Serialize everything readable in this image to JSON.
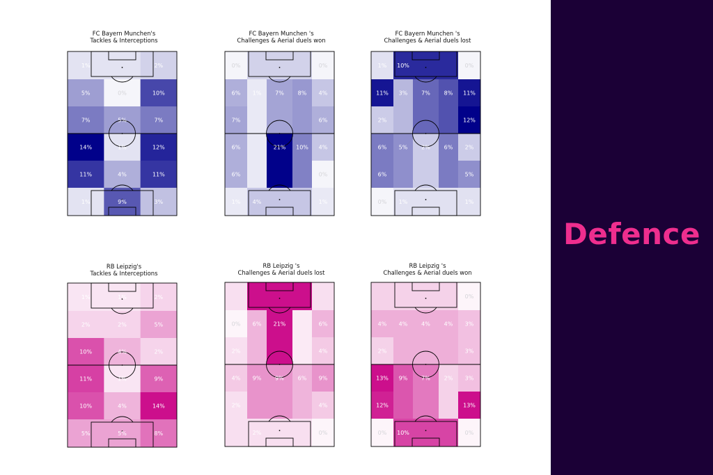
{
  "panel": {
    "title": "Defence",
    "background": "#1b0036",
    "title_color": "#ee2e8e"
  },
  "palettes": {
    "bayern": "#01018a",
    "leipzig": "#cc0f8c"
  },
  "chart_data": [
    {
      "type": "heatmap",
      "team": "bayern",
      "title": [
        "FC Bayern Munchen's",
        "Tackles & Interceptions"
      ],
      "rows": [
        [
          {
            "v": 1,
            "l": "1%"
          },
          {
            "v": 1,
            "l": null
          },
          {
            "v": 2,
            "l": "2%"
          }
        ],
        [
          {
            "v": 5,
            "l": "5%"
          },
          {
            "v": 0,
            "l": "0%"
          },
          {
            "v": 10,
            "l": "10%"
          }
        ],
        [
          {
            "v": 7,
            "l": "7%"
          },
          {
            "v": 5,
            "l": "5%"
          },
          {
            "v": 7,
            "l": "7%"
          }
        ],
        [
          {
            "v": 14,
            "l": "14%"
          },
          {
            "v": 1,
            "l": "1%"
          },
          {
            "v": 12,
            "l": "12%"
          }
        ],
        [
          {
            "v": 11,
            "l": "11%"
          },
          {
            "v": 4,
            "l": "4%"
          },
          {
            "v": 11,
            "l": "11%"
          }
        ],
        [
          {
            "v": 1,
            "l": "1%"
          },
          {
            "v": 9,
            "l": "9%"
          },
          {
            "v": 3,
            "l": "3%"
          }
        ]
      ]
    },
    {
      "type": "heatmap",
      "team": "bayern",
      "title": [
        "FC Bayern Munchen 's",
        "Challenges & Aerial duels won"
      ],
      "rows": [
        [
          {
            "v": 0,
            "l": "0%"
          },
          {
            "v": 3,
            "l": null
          },
          {
            "v": 3,
            "l": null
          },
          {
            "v": 3,
            "l": null
          },
          {
            "v": 0,
            "l": "0%"
          }
        ],
        [
          {
            "v": 6,
            "l": "6%"
          },
          {
            "v": 1,
            "l": "1%"
          },
          {
            "v": 7,
            "l": "7%"
          },
          {
            "v": 8,
            "l": "8%"
          },
          {
            "v": 4,
            "l": "4%"
          }
        ],
        [
          {
            "v": 7,
            "l": "7%"
          },
          {
            "v": 1,
            "l": null
          },
          {
            "v": 7,
            "l": null
          },
          {
            "v": 8,
            "l": null
          },
          {
            "v": 6,
            "l": "6%"
          }
        ],
        [
          {
            "v": 6,
            "l": "6%"
          },
          {
            "v": 1,
            "l": null
          },
          {
            "v": 21,
            "l": "21%"
          },
          {
            "v": 10,
            "l": "10%"
          },
          {
            "v": 4,
            "l": "4%"
          }
        ],
        [
          {
            "v": 6,
            "l": "6%"
          },
          {
            "v": 1,
            "l": null
          },
          {
            "v": 21,
            "l": null
          },
          {
            "v": 10,
            "l": null
          },
          {
            "v": 0,
            "l": "0%"
          }
        ],
        [
          {
            "v": 1,
            "l": "1%"
          },
          {
            "v": 4,
            "l": "4%"
          },
          {
            "v": 4,
            "l": null
          },
          {
            "v": 4,
            "l": null
          },
          {
            "v": 1,
            "l": "1%"
          }
        ]
      ]
    },
    {
      "type": "heatmap",
      "team": "bayern",
      "title": [
        "FC Bayern Munchen 's",
        "Challenges & Aerial duels lost"
      ],
      "rows": [
        [
          {
            "v": 1,
            "l": "1%"
          },
          {
            "v": 10,
            "l": "10%"
          },
          {
            "v": 10,
            "l": null
          },
          {
            "v": 10,
            "l": null
          },
          {
            "v": 0,
            "l": "0%"
          }
        ],
        [
          {
            "v": 11,
            "l": "11%"
          },
          {
            "v": 3,
            "l": "3%"
          },
          {
            "v": 7,
            "l": "7%"
          },
          {
            "v": 8,
            "l": "8%"
          },
          {
            "v": 11,
            "l": "11%"
          }
        ],
        [
          {
            "v": 2,
            "l": "2%"
          },
          {
            "v": 3,
            "l": null
          },
          {
            "v": 7,
            "l": null
          },
          {
            "v": 8,
            "l": null
          },
          {
            "v": 12,
            "l": "12%"
          }
        ],
        [
          {
            "v": 6,
            "l": "6%"
          },
          {
            "v": 5,
            "l": "5%"
          },
          {
            "v": 2,
            "l": "2%"
          },
          {
            "v": 6,
            "l": "6%"
          },
          {
            "v": 2,
            "l": "2%"
          }
        ],
        [
          {
            "v": 6,
            "l": "6%"
          },
          {
            "v": 5,
            "l": null
          },
          {
            "v": 2,
            "l": null
          },
          {
            "v": 6,
            "l": null
          },
          {
            "v": 5,
            "l": "5%"
          }
        ],
        [
          {
            "v": 0,
            "l": "0%"
          },
          {
            "v": 1,
            "l": "1%"
          },
          {
            "v": 1,
            "l": null
          },
          {
            "v": 1,
            "l": null
          },
          {
            "v": 1,
            "l": "1%"
          }
        ]
      ]
    },
    {
      "type": "heatmap",
      "team": "leipzig",
      "title": [
        "RB Leipzig's",
        "Tackles & Interceptions"
      ],
      "rows": [
        [
          {
            "v": 1,
            "l": "1%"
          },
          {
            "v": 1,
            "l": "1%"
          },
          {
            "v": 2,
            "l": "2%"
          }
        ],
        [
          {
            "v": 2,
            "l": "2%"
          },
          {
            "v": 2,
            "l": "2%"
          },
          {
            "v": 5,
            "l": "5%"
          }
        ],
        [
          {
            "v": 10,
            "l": "10%"
          },
          {
            "v": 4,
            "l": "4%"
          },
          {
            "v": 2,
            "l": "2%"
          }
        ],
        [
          {
            "v": 11,
            "l": "11%"
          },
          {
            "v": 1,
            "l": "1%"
          },
          {
            "v": 9,
            "l": "9%"
          }
        ],
        [
          {
            "v": 10,
            "l": "10%"
          },
          {
            "v": 4,
            "l": "4%"
          },
          {
            "v": 14,
            "l": "14%"
          }
        ],
        [
          {
            "v": 5,
            "l": "5%"
          },
          {
            "v": 5,
            "l": "5%"
          },
          {
            "v": 8,
            "l": "8%"
          }
        ]
      ]
    },
    {
      "type": "heatmap",
      "team": "leipzig",
      "title": [
        "RB Leipzig 's",
        "Challenges & Aerial duels lost"
      ],
      "rows": [
        [
          {
            "v": 2,
            "l": null
          },
          {
            "v": 21,
            "l": null
          },
          {
            "v": 21,
            "l": null
          },
          {
            "v": 21,
            "l": null
          },
          {
            "v": 2,
            "l": null
          }
        ],
        [
          {
            "v": 0,
            "l": "0%"
          },
          {
            "v": 6,
            "l": "6%"
          },
          {
            "v": 21,
            "l": "21%"
          },
          {
            "v": 1,
            "l": null
          },
          {
            "v": 6,
            "l": "6%"
          }
        ],
        [
          {
            "v": 2,
            "l": "2%"
          },
          {
            "v": 6,
            "l": null
          },
          {
            "v": 21,
            "l": null
          },
          {
            "v": 1,
            "l": null
          },
          {
            "v": 4,
            "l": "4%"
          }
        ],
        [
          {
            "v": 4,
            "l": "4%"
          },
          {
            "v": 9,
            "l": "9%"
          },
          {
            "v": 9,
            "l": "9%"
          },
          {
            "v": 6,
            "l": "6%"
          },
          {
            "v": 9,
            "l": "9%"
          }
        ],
        [
          {
            "v": 2,
            "l": "2%"
          },
          {
            "v": 9,
            "l": null
          },
          {
            "v": 9,
            "l": null
          },
          {
            "v": 6,
            "l": null
          },
          {
            "v": 4,
            "l": "4%"
          }
        ],
        [
          {
            "v": 2,
            "l": null
          },
          {
            "v": 2,
            "l": "2%"
          },
          {
            "v": 2,
            "l": null
          },
          {
            "v": 2,
            "l": null
          },
          {
            "v": 0,
            "l": "0%"
          }
        ]
      ]
    },
    {
      "type": "heatmap",
      "team": "leipzig",
      "title": [
        "RB Leipzig 's",
        "Challenges & Aerial duels won"
      ],
      "rows": [
        [
          {
            "v": 2,
            "l": null
          },
          {
            "v": 2,
            "l": null
          },
          {
            "v": 2,
            "l": null
          },
          {
            "v": 2,
            "l": null
          },
          {
            "v": 0,
            "l": "0%"
          }
        ],
        [
          {
            "v": 4,
            "l": "4%"
          },
          {
            "v": 4,
            "l": "4%"
          },
          {
            "v": 4,
            "l": "4%"
          },
          {
            "v": 4,
            "l": "4%"
          },
          {
            "v": 3,
            "l": "3%"
          }
        ],
        [
          {
            "v": 2,
            "l": "2%"
          },
          {
            "v": 4,
            "l": null
          },
          {
            "v": 4,
            "l": null
          },
          {
            "v": 4,
            "l": null
          },
          {
            "v": 3,
            "l": "3%"
          }
        ],
        [
          {
            "v": 13,
            "l": "13%"
          },
          {
            "v": 9,
            "l": "9%"
          },
          {
            "v": 7,
            "l": "7%"
          },
          {
            "v": 2,
            "l": "2%"
          },
          {
            "v": 3,
            "l": "3%"
          }
        ],
        [
          {
            "v": 12,
            "l": "12%"
          },
          {
            "v": 9,
            "l": null
          },
          {
            "v": 7,
            "l": null
          },
          {
            "v": 2,
            "l": null
          },
          {
            "v": 13,
            "l": "13%"
          }
        ],
        [
          {
            "v": 0,
            "l": "0%"
          },
          {
            "v": 10,
            "l": "10%"
          },
          {
            "v": 10,
            "l": null
          },
          {
            "v": 10,
            "l": null
          },
          {
            "v": 0,
            "l": "0%"
          }
        ]
      ]
    }
  ]
}
